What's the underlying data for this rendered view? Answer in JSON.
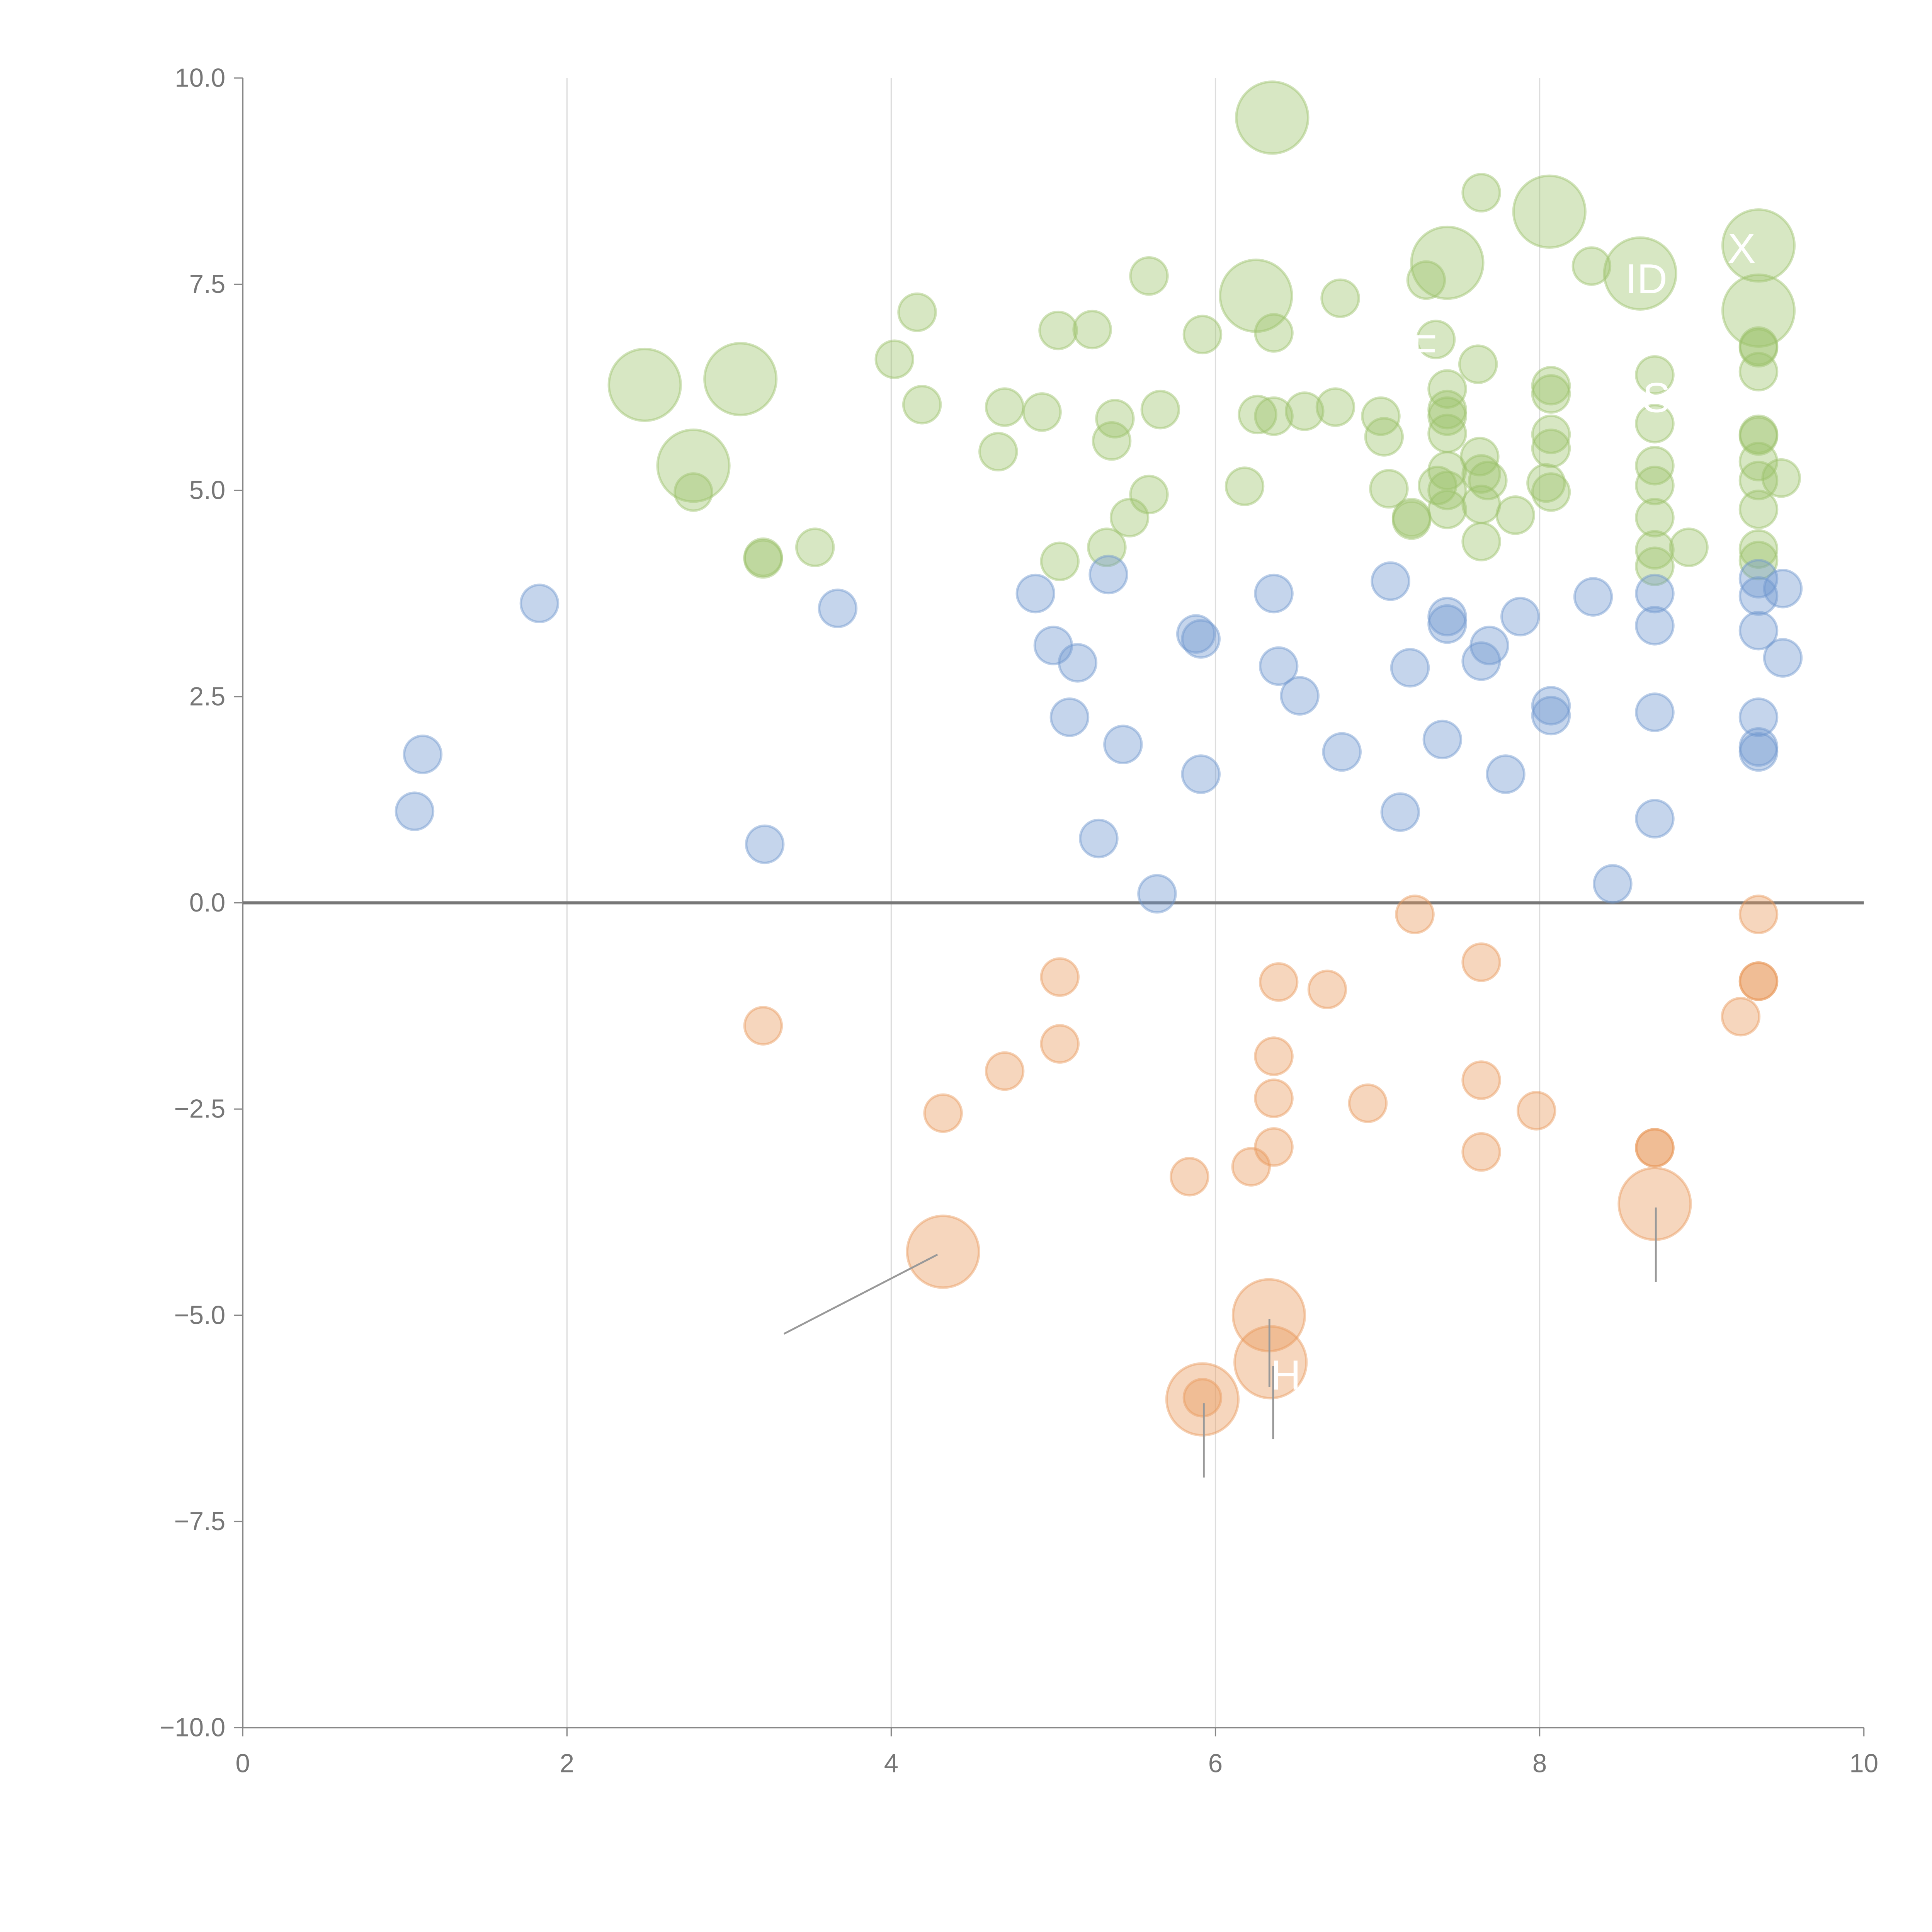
{
  "chart_data": {
    "type": "scatter",
    "title": "",
    "xlabel": "",
    "ylabel": "",
    "xlim": [
      0,
      10
    ],
    "ylim": [
      -10,
      10
    ],
    "grid": "vertical",
    "legend": "none",
    "x_ticks": [
      "0",
      "2",
      "4",
      "6",
      "8",
      "10"
    ],
    "y_ticks": [
      "10.0",
      "7.5",
      "5.0",
      "2.5",
      "0.0",
      "−2.5",
      "−5.0",
      "−7.5",
      "−10.0"
    ],
    "series": [
      {
        "name": "positive-high",
        "color": "#9cc26a",
        "points": [
          [
            6.35,
            9.52,
            2
          ],
          [
            7.64,
            8.61,
            1
          ],
          [
            8.06,
            8.38,
            2
          ],
          [
            9.35,
            7.97,
            2
          ],
          [
            7.43,
            7.76,
            2
          ],
          [
            8.62,
            7.63,
            2
          ],
          [
            8.32,
            7.72,
            1
          ],
          [
            7.3,
            7.55,
            1
          ],
          [
            5.59,
            7.6,
            1
          ],
          [
            6.25,
            7.36,
            2
          ],
          [
            6.77,
            7.33,
            1
          ],
          [
            4.16,
            7.16,
            1
          ],
          [
            9.35,
            7.18,
            2
          ],
          [
            5.03,
            6.94,
            1
          ],
          [
            5.24,
            6.95,
            1
          ],
          [
            5.92,
            6.89,
            1
          ],
          [
            6.36,
            6.91,
            1
          ],
          [
            7.36,
            6.83,
            1
          ],
          [
            9.35,
            6.73,
            1
          ],
          [
            9.35,
            6.75,
            1
          ],
          [
            4.02,
            6.59,
            1
          ],
          [
            7.62,
            6.53,
            1
          ],
          [
            2.48,
            6.28,
            2
          ],
          [
            3.07,
            6.35,
            2
          ],
          [
            9.35,
            6.44,
            1
          ],
          [
            8.07,
            6.27,
            1
          ],
          [
            8.71,
            6.4,
            1
          ],
          [
            7.43,
            6.23,
            1
          ],
          [
            8.07,
            6.17,
            1
          ],
          [
            4.19,
            6.04,
            1
          ],
          [
            4.7,
            6.01,
            1
          ],
          [
            4.93,
            5.95,
            1
          ],
          [
            5.38,
            5.87,
            1
          ],
          [
            5.66,
            5.98,
            1
          ],
          [
            6.26,
            5.92,
            1
          ],
          [
            6.36,
            5.9,
            1
          ],
          [
            6.55,
            5.96,
            1
          ],
          [
            6.74,
            6.01,
            1
          ],
          [
            7.02,
            5.9,
            1
          ],
          [
            7.43,
            5.98,
            1
          ],
          [
            7.43,
            5.9,
            1
          ],
          [
            8.71,
            5.81,
            1
          ],
          [
            7.04,
            5.65,
            1
          ],
          [
            7.43,
            5.69,
            1
          ],
          [
            8.07,
            5.68,
            1
          ],
          [
            9.35,
            5.68,
            1
          ],
          [
            9.35,
            5.66,
            1
          ],
          [
            5.36,
            5.6,
            1
          ],
          [
            8.07,
            5.51,
            1
          ],
          [
            4.66,
            5.47,
            1
          ],
          [
            7.63,
            5.41,
            1
          ],
          [
            9.35,
            5.35,
            1
          ],
          [
            2.78,
            5.3,
            2
          ],
          [
            8.71,
            5.3,
            1
          ],
          [
            7.43,
            5.24,
            1
          ],
          [
            7.64,
            5.2,
            1
          ],
          [
            7.68,
            5.12,
            1
          ],
          [
            7.37,
            5.06,
            1
          ],
          [
            8.71,
            5.06,
            1
          ],
          [
            9.35,
            5.12,
            1
          ],
          [
            9.49,
            5.15,
            1
          ],
          [
            8.04,
            5.09,
            1
          ],
          [
            6.18,
            5.05,
            1
          ],
          [
            7.43,
            5.0,
            1
          ],
          [
            7.07,
            5.02,
            1
          ],
          [
            8.07,
            4.98,
            1
          ],
          [
            5.59,
            4.95,
            1
          ],
          [
            2.78,
            4.98,
            1
          ],
          [
            7.64,
            4.83,
            1
          ],
          [
            7.43,
            4.77,
            1
          ],
          [
            9.35,
            4.77,
            1
          ],
          [
            7.85,
            4.7,
            1
          ],
          [
            7.21,
            4.67,
            1
          ],
          [
            7.21,
            4.64,
            1
          ],
          [
            8.71,
            4.67,
            1
          ],
          [
            5.47,
            4.67,
            1
          ],
          [
            7.64,
            4.38,
            1
          ],
          [
            9.35,
            4.29,
            1
          ],
          [
            8.92,
            4.31,
            1
          ],
          [
            8.71,
            4.28,
            1
          ],
          [
            3.53,
            4.31,
            1
          ],
          [
            5.33,
            4.31,
            1
          ],
          [
            3.21,
            4.19,
            1
          ],
          [
            3.21,
            4.17,
            1
          ],
          [
            5.04,
            4.14,
            1
          ],
          [
            9.35,
            4.15,
            1
          ],
          [
            8.71,
            4.08,
            1
          ]
        ]
      },
      {
        "name": "positive-low",
        "color": "#6f96cf",
        "points": [
          [
            1.83,
            3.63,
            1
          ],
          [
            3.67,
            3.57,
            1
          ],
          [
            4.89,
            3.75,
            1
          ],
          [
            5.34,
            3.98,
            1
          ],
          [
            6.36,
            3.75,
            1
          ],
          [
            7.08,
            3.9,
            1
          ],
          [
            8.33,
            3.71,
            1
          ],
          [
            8.71,
            3.75,
            1
          ],
          [
            9.35,
            3.93,
            1
          ],
          [
            9.5,
            3.81,
            1
          ],
          [
            9.35,
            3.72,
            1
          ],
          [
            7.43,
            3.47,
            1
          ],
          [
            7.43,
            3.38,
            1
          ],
          [
            7.88,
            3.47,
            1
          ],
          [
            8.71,
            3.36,
            1
          ],
          [
            9.35,
            3.3,
            1
          ],
          [
            5.88,
            3.26,
            1
          ],
          [
            5.91,
            3.2,
            1
          ],
          [
            5.0,
            3.12,
            1
          ],
          [
            5.15,
            2.91,
            1
          ],
          [
            7.69,
            3.12,
            1
          ],
          [
            6.39,
            2.87,
            1
          ],
          [
            7.2,
            2.85,
            1
          ],
          [
            7.64,
            2.93,
            1
          ],
          [
            9.5,
            2.97,
            1
          ],
          [
            6.52,
            2.51,
            1
          ],
          [
            8.07,
            2.39,
            1
          ],
          [
            8.07,
            2.27,
            1
          ],
          [
            5.1,
            2.25,
            1
          ],
          [
            8.71,
            2.31,
            1
          ],
          [
            9.35,
            2.25,
            1
          ],
          [
            1.11,
            1.8,
            1
          ],
          [
            5.43,
            1.92,
            1
          ],
          [
            6.78,
            1.83,
            1
          ],
          [
            7.4,
            1.98,
            1
          ],
          [
            9.35,
            1.89,
            1
          ],
          [
            9.35,
            1.83,
            1
          ],
          [
            5.91,
            1.56,
            1
          ],
          [
            7.79,
            1.56,
            1
          ],
          [
            1.06,
            1.11,
            1
          ],
          [
            7.14,
            1.1,
            1
          ],
          [
            8.71,
            1.02,
            1
          ],
          [
            3.22,
            0.71,
            1
          ],
          [
            5.28,
            0.78,
            1
          ],
          [
            5.64,
            0.11,
            1
          ],
          [
            8.45,
            0.23,
            1
          ]
        ]
      },
      {
        "name": "negative",
        "color": "#e8995a",
        "points": [
          [
            7.23,
            -0.14,
            1
          ],
          [
            9.35,
            -0.14,
            1
          ],
          [
            7.64,
            -0.72,
            1
          ],
          [
            5.04,
            -0.9,
            1
          ],
          [
            6.39,
            -0.96,
            1
          ],
          [
            6.69,
            -1.05,
            1
          ],
          [
            9.35,
            -0.95,
            1
          ],
          [
            9.35,
            -0.95,
            1
          ],
          [
            9.24,
            -1.38,
            1
          ],
          [
            3.21,
            -1.49,
            1
          ],
          [
            5.04,
            -1.71,
            1
          ],
          [
            6.36,
            -1.86,
            1
          ],
          [
            4.7,
            -2.04,
            1
          ],
          [
            7.64,
            -2.15,
            1
          ],
          [
            6.36,
            -2.37,
            1
          ],
          [
            6.94,
            -2.43,
            1
          ],
          [
            4.32,
            -2.55,
            1
          ],
          [
            7.98,
            -2.52,
            1
          ],
          [
            6.36,
            -2.96,
            1
          ],
          [
            8.71,
            -2.97,
            1
          ],
          [
            8.71,
            -2.97,
            1
          ],
          [
            7.64,
            -3.02,
            1
          ],
          [
            6.22,
            -3.2,
            1
          ],
          [
            5.84,
            -3.32,
            1
          ],
          [
            8.71,
            -3.65,
            2
          ],
          [
            4.32,
            -4.23,
            2
          ],
          [
            6.33,
            -5.0,
            2
          ],
          [
            6.34,
            -5.57,
            2
          ],
          [
            5.92,
            -6.02,
            2
          ],
          [
            5.92,
            -6.0,
            1
          ]
        ]
      }
    ],
    "annotations": [
      {
        "text": "ID",
        "x": 8.62,
        "y": 7.63
      },
      {
        "text": "X",
        "x": 9.35,
        "y": 7.97
      },
      {
        "text": "F",
        "x": 7.36,
        "y": 6.83
      },
      {
        "text": "SO",
        "x": 8.71,
        "y": 6.4
      },
      {
        "text": "H",
        "x": 6.34,
        "y": -5.57
      }
    ]
  }
}
